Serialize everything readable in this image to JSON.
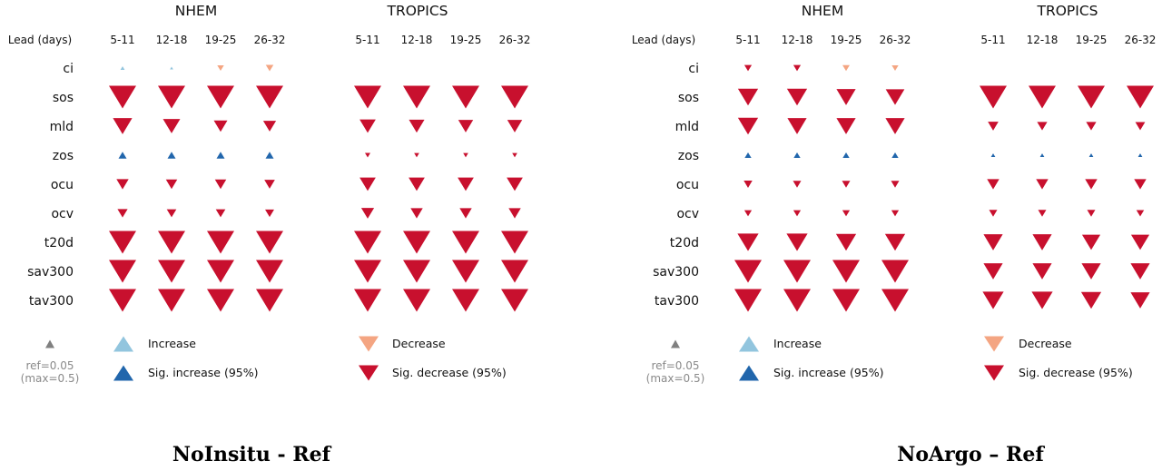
{
  "colors": {
    "increase": "#92c5de",
    "sig_increase": "#2166ac",
    "decrease": "#f4a582",
    "sig_decrease": "#c8102e",
    "ref": "#808080"
  },
  "legend": {
    "increase": "Increase",
    "sig_increase": "Sig. increase (95%)",
    "decrease": "Decrease",
    "sig_decrease": "Sig. decrease (95%)",
    "ref_line1": "ref=0.05",
    "ref_line2": "(max=0.5)"
  },
  "chart_data": [
    {
      "type": "triangle-matrix",
      "caption": "NoInsitu - Ref",
      "row_header": "Lead (days)",
      "ref_value": 0.05,
      "max_value": 0.5,
      "variables": [
        "ci",
        "sos",
        "mld",
        "zos",
        "ocu",
        "ocv",
        "t20d",
        "sav300",
        "tav300"
      ],
      "regions": [
        {
          "name": "NHEM",
          "leads": [
            "5-11",
            "12-18",
            "19-25",
            "26-32"
          ],
          "values": [
            [
              0.005,
              0.003,
              -0.012,
              -0.016
            ],
            [
              -0.2,
              -0.2,
              -0.2,
              -0.2
            ],
            [
              -0.1,
              -0.08,
              -0.05,
              -0.045
            ],
            [
              0.018,
              0.018,
              0.018,
              0.018
            ],
            [
              -0.04,
              -0.035,
              -0.035,
              -0.03
            ],
            [
              -0.028,
              -0.025,
              -0.025,
              -0.022
            ],
            [
              -0.2,
              -0.2,
              -0.2,
              -0.2
            ],
            [
              -0.2,
              -0.2,
              -0.2,
              -0.2
            ],
            [
              -0.2,
              -0.2,
              -0.2,
              -0.2
            ]
          ],
          "significant": [
            [
              false,
              false,
              false,
              false
            ],
            [
              true,
              true,
              true,
              true
            ],
            [
              true,
              true,
              true,
              true
            ],
            [
              true,
              true,
              true,
              true
            ],
            [
              true,
              true,
              true,
              true
            ],
            [
              true,
              true,
              true,
              true
            ],
            [
              true,
              true,
              true,
              true
            ],
            [
              true,
              true,
              true,
              true
            ],
            [
              true,
              true,
              true,
              true
            ]
          ]
        },
        {
          "name": "TROPICS",
          "leads": [
            "5-11",
            "12-18",
            "19-25",
            "26-32"
          ],
          "values": [
            [
              null,
              null,
              null,
              null
            ],
            [
              -0.2,
              -0.2,
              -0.2,
              -0.2
            ],
            [
              -0.07,
              -0.065,
              -0.06,
              -0.06
            ],
            [
              -0.008,
              -0.007,
              -0.007,
              -0.007
            ],
            [
              -0.07,
              -0.07,
              -0.07,
              -0.07
            ],
            [
              -0.045,
              -0.04,
              -0.04,
              -0.04
            ],
            [
              -0.2,
              -0.2,
              -0.2,
              -0.2
            ],
            [
              -0.2,
              -0.2,
              -0.2,
              -0.2
            ],
            [
              -0.2,
              -0.2,
              -0.2,
              -0.2
            ]
          ],
          "significant": [
            [
              false,
              false,
              false,
              false
            ],
            [
              true,
              true,
              true,
              true
            ],
            [
              true,
              true,
              true,
              true
            ],
            [
              true,
              true,
              true,
              true
            ],
            [
              true,
              true,
              true,
              true
            ],
            [
              true,
              true,
              true,
              true
            ],
            [
              true,
              true,
              true,
              true
            ],
            [
              true,
              true,
              true,
              true
            ],
            [
              true,
              true,
              true,
              true
            ]
          ]
        }
      ]
    },
    {
      "type": "triangle-matrix",
      "caption": "NoArgo – Ref",
      "row_header": "Lead (days)",
      "ref_value": 0.05,
      "max_value": 0.5,
      "variables": [
        "ci",
        "sos",
        "mld",
        "zos",
        "ocu",
        "ocv",
        "t20d",
        "sav300",
        "tav300"
      ],
      "regions": [
        {
          "name": "NHEM",
          "leads": [
            "5-11",
            "12-18",
            "19-25",
            "26-32"
          ],
          "values": [
            [
              -0.015,
              -0.015,
              -0.014,
              -0.012
            ],
            [
              -0.11,
              -0.11,
              -0.1,
              -0.095
            ],
            [
              -0.11,
              -0.1,
              -0.1,
              -0.1
            ],
            [
              0.012,
              0.012,
              0.012,
              0.012
            ],
            [
              -0.02,
              -0.018,
              -0.018,
              -0.018
            ],
            [
              -0.015,
              -0.015,
              -0.015,
              -0.015
            ],
            [
              -0.12,
              -0.12,
              -0.11,
              -0.11
            ],
            [
              -0.2,
              -0.2,
              -0.2,
              -0.2
            ],
            [
              -0.2,
              -0.2,
              -0.2,
              -0.2
            ]
          ],
          "significant": [
            [
              true,
              true,
              false,
              false
            ],
            [
              true,
              true,
              true,
              true
            ],
            [
              true,
              true,
              true,
              true
            ],
            [
              true,
              true,
              true,
              true
            ],
            [
              true,
              true,
              true,
              true
            ],
            [
              true,
              true,
              true,
              true
            ],
            [
              true,
              true,
              true,
              true
            ],
            [
              true,
              true,
              true,
              true
            ],
            [
              true,
              true,
              true,
              true
            ]
          ]
        },
        {
          "name": "TROPICS",
          "leads": [
            "5-11",
            "12-18",
            "19-25",
            "26-32"
          ],
          "values": [
            [
              null,
              null,
              null,
              null
            ],
            [
              -0.2,
              -0.2,
              -0.2,
              -0.2
            ],
            [
              -0.03,
              -0.028,
              -0.028,
              -0.026
            ],
            [
              0.005,
              0.005,
              0.005,
              0.005
            ],
            [
              -0.04,
              -0.04,
              -0.04,
              -0.04
            ],
            [
              -0.018,
              -0.018,
              -0.018,
              -0.016
            ],
            [
              -0.1,
              -0.1,
              -0.09,
              -0.09
            ],
            [
              -0.1,
              -0.1,
              -0.1,
              -0.1
            ],
            [
              -0.12,
              -0.12,
              -0.11,
              -0.1
            ]
          ],
          "significant": [
            [
              false,
              false,
              false,
              false
            ],
            [
              true,
              true,
              true,
              true
            ],
            [
              true,
              true,
              true,
              true
            ],
            [
              true,
              true,
              true,
              true
            ],
            [
              true,
              true,
              true,
              true
            ],
            [
              true,
              true,
              true,
              true
            ],
            [
              true,
              true,
              true,
              true
            ],
            [
              true,
              true,
              true,
              true
            ],
            [
              true,
              true,
              true,
              true
            ]
          ]
        }
      ]
    }
  ]
}
